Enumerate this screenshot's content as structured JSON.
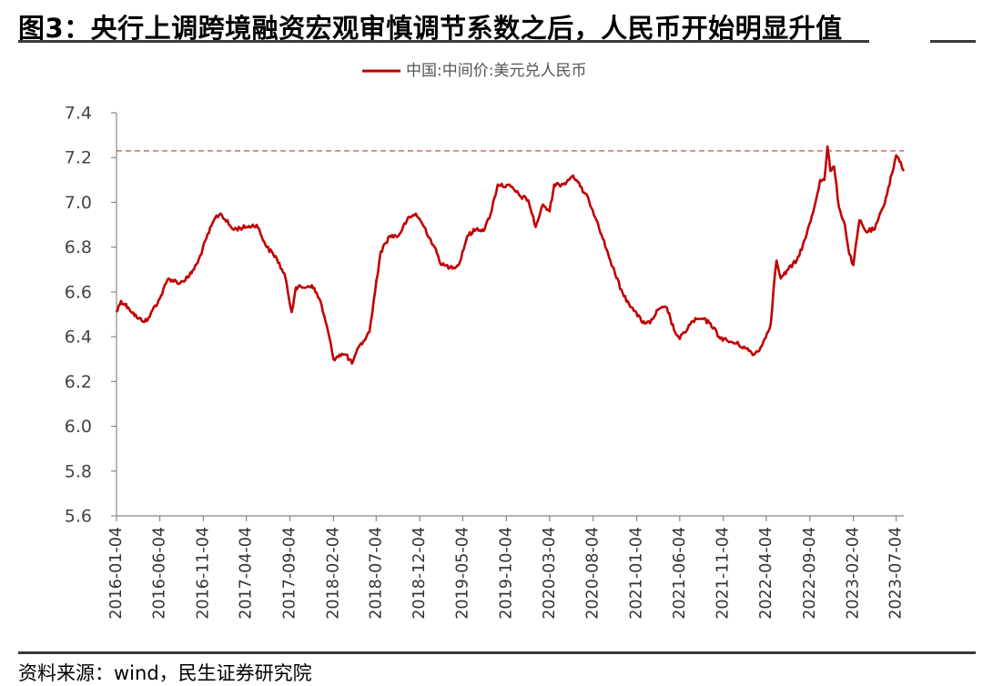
{
  "header": {
    "title": "图3：央行上调跨境融资宏观审慎调节系数之后，人民币开始明显升值"
  },
  "footer": {
    "source": "资料来源：wind，民生证券研究院"
  },
  "colors": {
    "series": "#c00000",
    "reference_line": "#c0504d",
    "axis": "#888888"
  },
  "chart_data": {
    "type": "line",
    "title": "",
    "xlabel": "",
    "ylabel": "",
    "ylim": [
      5.6,
      7.4
    ],
    "yticks": [
      "7.4",
      "7.2",
      "7.0",
      "6.8",
      "6.6",
      "6.4",
      "6.2",
      "6.0",
      "5.8",
      "5.6"
    ],
    "xrange": [
      "2016-01-04",
      "2023-07-31"
    ],
    "xticks": [
      "2016-01-04",
      "2016-06-04",
      "2016-11-04",
      "2017-04-04",
      "2017-09-04",
      "2018-02-04",
      "2018-07-04",
      "2018-12-04",
      "2019-05-04",
      "2019-10-04",
      "2020-03-04",
      "2020-08-04",
      "2021-01-04",
      "2021-06-04",
      "2021-11-04",
      "2022-04-04",
      "2022-09-04",
      "2023-02-04",
      "2023-07-04"
    ],
    "legend": "top-center",
    "grid": false,
    "reference_line": {
      "y": 7.23,
      "style": "dashed"
    },
    "series": [
      {
        "name": "中国:中间价:美元兑人民币",
        "points": [
          [
            "2016-01-04",
            6.51
          ],
          [
            "2016-01-20",
            6.56
          ],
          [
            "2016-02-15",
            6.53
          ],
          [
            "2016-03-20",
            6.48
          ],
          [
            "2016-04-20",
            6.47
          ],
          [
            "2016-05-10",
            6.52
          ],
          [
            "2016-06-04",
            6.57
          ],
          [
            "2016-07-04",
            6.66
          ],
          [
            "2016-08-15",
            6.64
          ],
          [
            "2016-09-15",
            6.67
          ],
          [
            "2016-10-15",
            6.73
          ],
          [
            "2016-11-15",
            6.84
          ],
          [
            "2016-12-15",
            6.93
          ],
          [
            "2017-01-04",
            6.95
          ],
          [
            "2017-02-15",
            6.88
          ],
          [
            "2017-04-04",
            6.89
          ],
          [
            "2017-05-10",
            6.9
          ],
          [
            "2017-06-15",
            6.8
          ],
          [
            "2017-07-20",
            6.75
          ],
          [
            "2017-08-20",
            6.66
          ],
          [
            "2017-09-10",
            6.51
          ],
          [
            "2017-09-25",
            6.62
          ],
          [
            "2017-10-20",
            6.62
          ],
          [
            "2017-11-20",
            6.63
          ],
          [
            "2017-12-20",
            6.56
          ],
          [
            "2018-01-20",
            6.4
          ],
          [
            "2018-02-04",
            6.3
          ],
          [
            "2018-02-25",
            6.32
          ],
          [
            "2018-03-20",
            6.32
          ],
          [
            "2018-04-10",
            6.28
          ],
          [
            "2018-04-25",
            6.33
          ],
          [
            "2018-05-20",
            6.38
          ],
          [
            "2018-06-10",
            6.42
          ],
          [
            "2018-06-30",
            6.6
          ],
          [
            "2018-07-20",
            6.78
          ],
          [
            "2018-08-20",
            6.85
          ],
          [
            "2018-09-20",
            6.85
          ],
          [
            "2018-10-20",
            6.92
          ],
          [
            "2018-11-20",
            6.95
          ],
          [
            "2018-12-20",
            6.89
          ],
          [
            "2019-01-20",
            6.81
          ],
          [
            "2019-02-20",
            6.72
          ],
          [
            "2019-03-20",
            6.71
          ],
          [
            "2019-04-20",
            6.72
          ],
          [
            "2019-05-20",
            6.85
          ],
          [
            "2019-06-20",
            6.88
          ],
          [
            "2019-07-20",
            6.88
          ],
          [
            "2019-08-10",
            6.95
          ],
          [
            "2019-09-04",
            7.08
          ],
          [
            "2019-10-20",
            7.07
          ],
          [
            "2019-11-20",
            7.03
          ],
          [
            "2019-12-20",
            7.01
          ],
          [
            "2020-01-15",
            6.89
          ],
          [
            "2020-02-10",
            6.99
          ],
          [
            "2020-03-04",
            6.96
          ],
          [
            "2020-03-20",
            7.08
          ],
          [
            "2020-04-20",
            7.08
          ],
          [
            "2020-05-25",
            7.12
          ],
          [
            "2020-06-20",
            7.07
          ],
          [
            "2020-07-20",
            7.01
          ],
          [
            "2020-08-20",
            6.91
          ],
          [
            "2020-09-20",
            6.79
          ],
          [
            "2020-10-20",
            6.68
          ],
          [
            "2020-11-20",
            6.58
          ],
          [
            "2020-12-20",
            6.53
          ],
          [
            "2021-01-20",
            6.47
          ],
          [
            "2021-02-20",
            6.46
          ],
          [
            "2021-03-20",
            6.52
          ],
          [
            "2021-04-20",
            6.53
          ],
          [
            "2021-05-15",
            6.43
          ],
          [
            "2021-06-04",
            6.39
          ],
          [
            "2021-07-20",
            6.47
          ],
          [
            "2021-08-20",
            6.48
          ],
          [
            "2021-09-20",
            6.46
          ],
          [
            "2021-10-20",
            6.4
          ],
          [
            "2021-11-20",
            6.38
          ],
          [
            "2021-12-20",
            6.37
          ],
          [
            "2022-01-20",
            6.35
          ],
          [
            "2022-02-20",
            6.32
          ],
          [
            "2022-03-20",
            6.36
          ],
          [
            "2022-04-20",
            6.46
          ],
          [
            "2022-04-30",
            6.62
          ],
          [
            "2022-05-10",
            6.74
          ],
          [
            "2022-05-25",
            6.66
          ],
          [
            "2022-06-20",
            6.7
          ],
          [
            "2022-07-20",
            6.74
          ],
          [
            "2022-08-20",
            6.84
          ],
          [
            "2022-09-20",
            6.98
          ],
          [
            "2022-10-10",
            7.1
          ],
          [
            "2022-10-25",
            7.1
          ],
          [
            "2022-11-05",
            7.25
          ],
          [
            "2022-11-15",
            7.14
          ],
          [
            "2022-11-28",
            7.16
          ],
          [
            "2022-12-15",
            6.98
          ],
          [
            "2023-01-05",
            6.9
          ],
          [
            "2023-01-20",
            6.77
          ],
          [
            "2023-02-04",
            6.72
          ],
          [
            "2023-02-25",
            6.92
          ],
          [
            "2023-03-20",
            6.87
          ],
          [
            "2023-04-20",
            6.88
          ],
          [
            "2023-05-20",
            6.98
          ],
          [
            "2023-06-20",
            7.13
          ],
          [
            "2023-07-04",
            7.21
          ],
          [
            "2023-07-20",
            7.18
          ],
          [
            "2023-07-31",
            7.14
          ]
        ]
      }
    ]
  }
}
